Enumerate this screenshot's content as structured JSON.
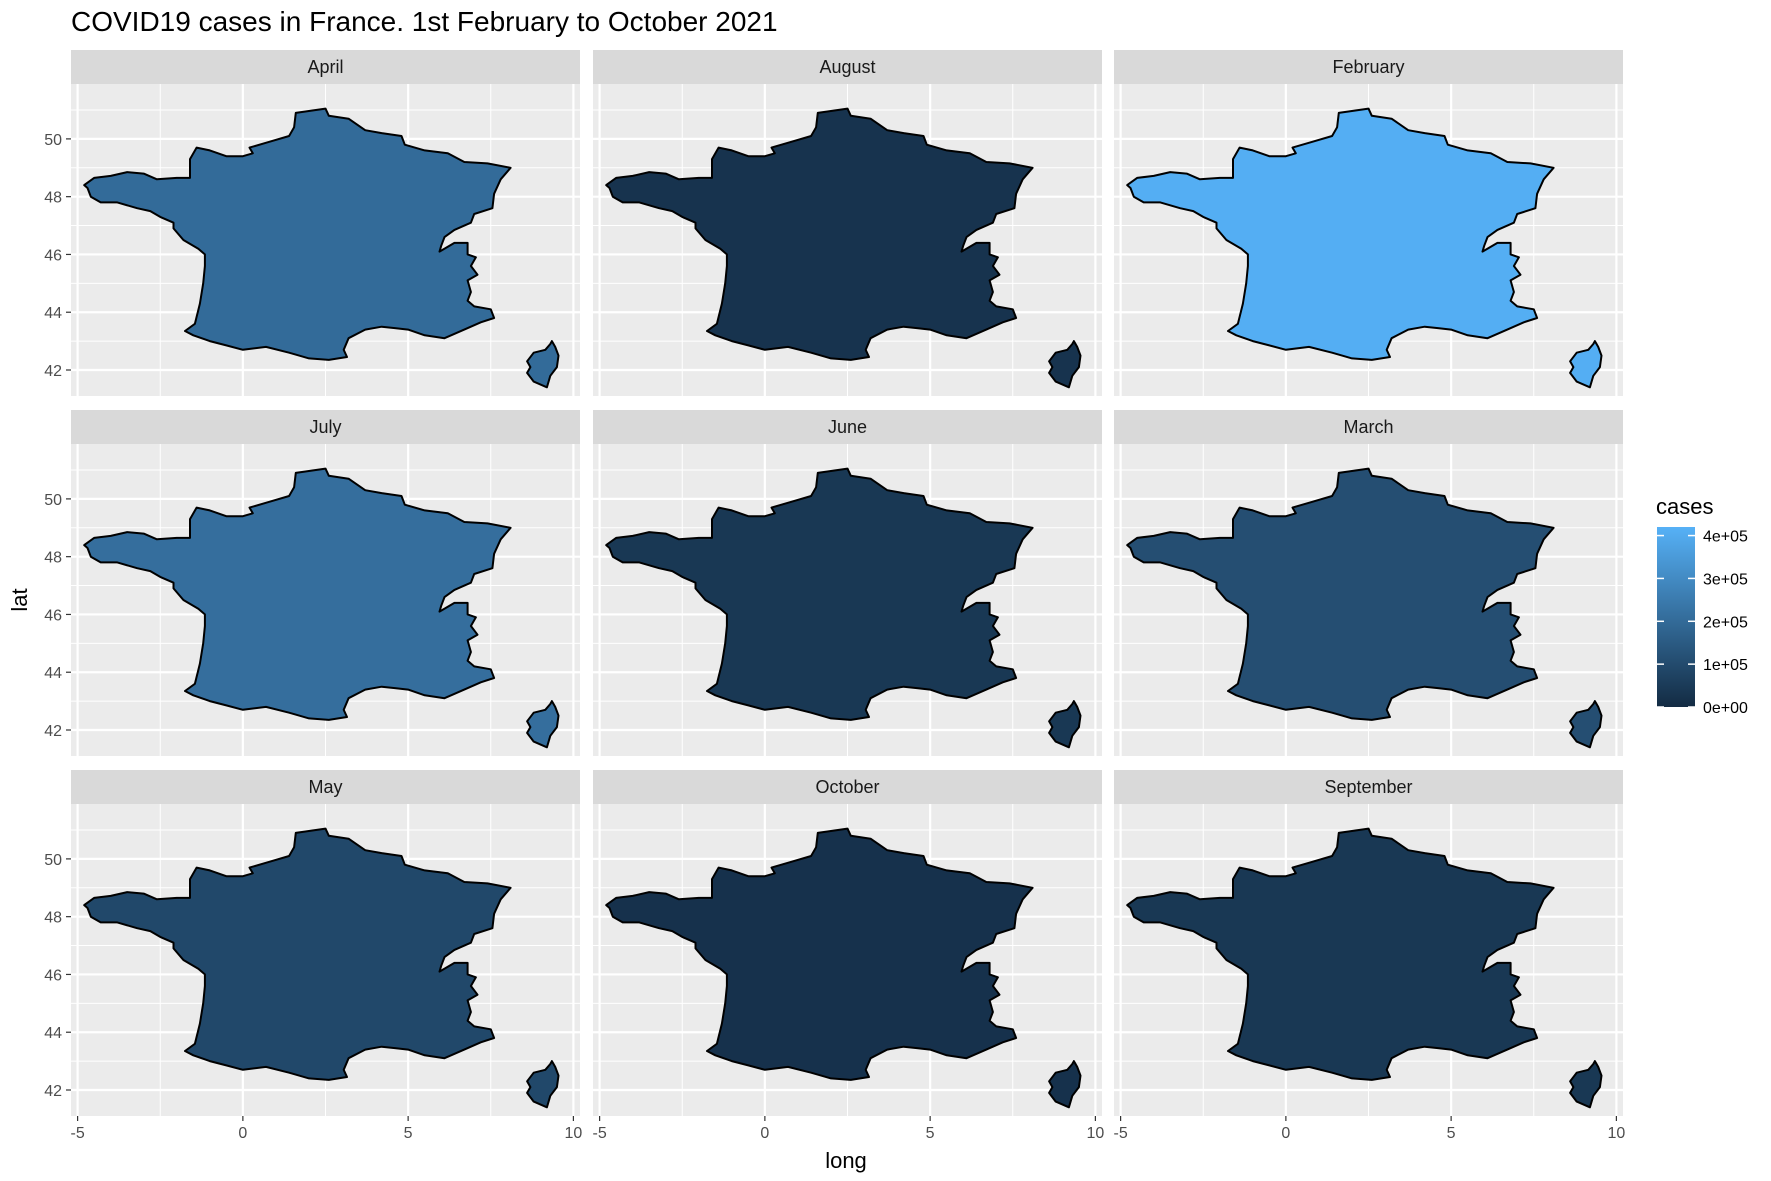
{
  "chart_data": {
    "type": "choropleth-facet",
    "title": "COVID19 cases in France. 1st February to October 2021",
    "xlabel": "long",
    "ylabel": "lat",
    "xlim": [
      -5.2,
      10.2
    ],
    "ylim": [
      41.1,
      51.9
    ],
    "xticks": [
      -5,
      0,
      5,
      10
    ],
    "xtick_labels": [
      "-5",
      "0",
      "5",
      "10"
    ],
    "yticks": [
      42,
      44,
      46,
      48,
      50
    ],
    "ytick_labels": [
      "42",
      "44",
      "46",
      "48",
      "50"
    ],
    "grid": true,
    "legend": {
      "title": "cases",
      "placement": "right",
      "breaks": [
        0,
        100000,
        200000,
        300000,
        400000
      ],
      "labels": [
        "0e+00",
        "1e+05",
        "2e+05",
        "3e+05",
        "4e+05"
      ],
      "limits": [
        0,
        420000
      ],
      "low_color": "#132B43",
      "high_color": "#56B1F7"
    },
    "facets": [
      {
        "label": "April",
        "cases": 200000
      },
      {
        "label": "August",
        "cases": 25000
      },
      {
        "label": "February",
        "cases": 410000
      },
      {
        "label": "July",
        "cases": 210000
      },
      {
        "label": "June",
        "cases": 40000
      },
      {
        "label": "March",
        "cases": 110000
      },
      {
        "label": "May",
        "cases": 90000
      },
      {
        "label": "October",
        "cases": 20000
      },
      {
        "label": "September",
        "cases": 40000
      }
    ]
  },
  "colors": {
    "panel_background": "#EBEBEB",
    "grid_line": "#FFFFFF",
    "strip_background": "#D9D9D9",
    "outline": "#000000"
  }
}
